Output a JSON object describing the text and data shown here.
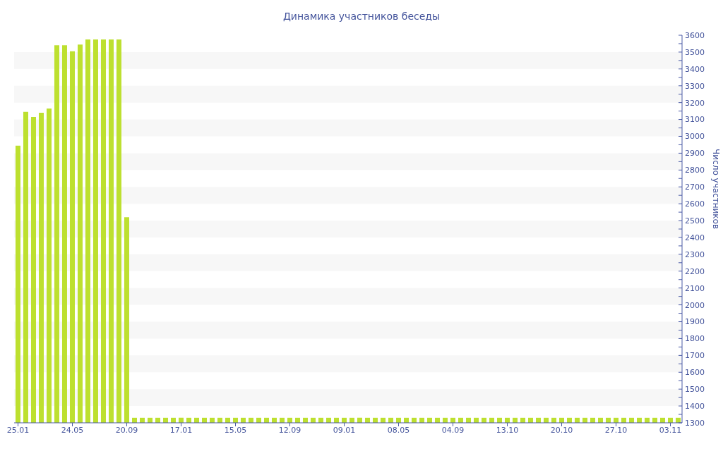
{
  "chart_data": {
    "type": "bar",
    "title": "Динамика участников беседы",
    "ylabel": "Число участников",
    "categories": [
      "25.01",
      null,
      null,
      null,
      null,
      null,
      null,
      "24.05",
      null,
      null,
      null,
      null,
      null,
      null,
      "20.09",
      null,
      null,
      null,
      null,
      null,
      null,
      "17.01",
      null,
      null,
      null,
      null,
      null,
      null,
      "15.05",
      null,
      null,
      null,
      null,
      null,
      null,
      "12.09",
      null,
      null,
      null,
      null,
      null,
      null,
      "09.01",
      null,
      null,
      null,
      null,
      null,
      null,
      "08.05",
      null,
      null,
      null,
      null,
      null,
      null,
      "04.09",
      null,
      null,
      null,
      null,
      null,
      null,
      "13.10",
      null,
      null,
      null,
      null,
      null,
      null,
      "20.10",
      null,
      null,
      null,
      null,
      null,
      null,
      "27.10",
      null,
      null,
      null,
      null,
      null,
      null,
      "03.11",
      null
    ],
    "values": [
      2945,
      3145,
      3115,
      3140,
      3165,
      3540,
      3540,
      3505,
      3545,
      3575,
      3575,
      3575,
      3575,
      3575,
      2520,
      1330,
      1330,
      1330,
      1330,
      1330,
      1330,
      1330,
      1330,
      1330,
      1330,
      1330,
      1330,
      1330,
      1330,
      1330,
      1330,
      1330,
      1330,
      1330,
      1330,
      1330,
      1330,
      1330,
      1330,
      1330,
      1330,
      1330,
      1330,
      1330,
      1330,
      1330,
      1330,
      1330,
      1330,
      1330,
      1330,
      1330,
      1330,
      1330,
      1330,
      1330,
      1330,
      1330,
      1330,
      1330,
      1330,
      1330,
      1330,
      1330,
      1330,
      1330,
      1330,
      1330,
      1330,
      1330,
      1330,
      1330,
      1330,
      1330,
      1330,
      1330,
      1330,
      1330,
      1330,
      1330,
      1330,
      1330,
      1330,
      1330,
      1330,
      1330
    ],
    "color": "#bde02f",
    "ylim": [
      1300,
      3600
    ],
    "yticks": [
      1300,
      {
        "value": 1350,
        "label": null
      },
      1400,
      {
        "value": 1450,
        "label": null
      },
      1500,
      {
        "value": 1550,
        "label": null
      },
      1600,
      {
        "value": 1650,
        "label": null
      },
      1700,
      {
        "value": 1750,
        "label": null
      },
      1800,
      {
        "value": 1850,
        "label": null
      },
      1900,
      {
        "value": 1950,
        "label": null
      },
      2000,
      {
        "value": 2050,
        "label": null
      },
      2100,
      {
        "value": 2150,
        "label": null
      },
      2200,
      {
        "value": 2250,
        "label": null
      },
      2300,
      {
        "value": 2350,
        "label": null
      },
      2400,
      {
        "value": 2450,
        "label": null
      },
      2500,
      {
        "value": 2550,
        "label": null
      },
      2600,
      {
        "value": 2650,
        "label": null
      },
      2700,
      {
        "value": 2750,
        "label": null
      },
      2800,
      {
        "value": 2850,
        "label": null
      },
      2900,
      {
        "value": 2950,
        "label": null
      },
      3000,
      {
        "value": 3050,
        "label": null
      },
      3100,
      {
        "value": 3150,
        "label": null
      },
      3200,
      {
        "value": 3250,
        "label": null
      },
      3300,
      {
        "value": 3350,
        "label": null
      },
      3400,
      {
        "value": 3450,
        "label": null
      },
      3500,
      {
        "value": 3550,
        "label": null
      },
      3600
    ],
    "bands": [
      {
        "axis": "y",
        "from": 1400,
        "to": 1500,
        "color": "#f7f7f7"
      },
      {
        "axis": "y",
        "from": 1600,
        "to": 1700,
        "color": "#f7f7f7"
      },
      {
        "axis": "y",
        "from": 1800,
        "to": 1900,
        "color": "#f7f7f7"
      },
      {
        "axis": "y",
        "from": 2000,
        "to": 2100,
        "color": "#f7f7f7"
      },
      {
        "axis": "y",
        "from": 2200,
        "to": 2300,
        "color": "#f7f7f7"
      },
      {
        "axis": "y",
        "from": 2400,
        "to": 2500,
        "color": "#f7f7f7"
      },
      {
        "axis": "y",
        "from": 2600,
        "to": 2700,
        "color": "#f7f7f7"
      },
      {
        "axis": "y",
        "from": 2800,
        "to": 2900,
        "color": "#f7f7f7"
      },
      {
        "axis": "y",
        "from": 3000,
        "to": 3100,
        "color": "#f7f7f7"
      },
      {
        "axis": "y",
        "from": 3200,
        "to": 3300,
        "color": "#f7f7f7"
      },
      {
        "axis": "y",
        "from": 3400,
        "to": 3500,
        "color": "#f7f7f7"
      }
    ]
  }
}
